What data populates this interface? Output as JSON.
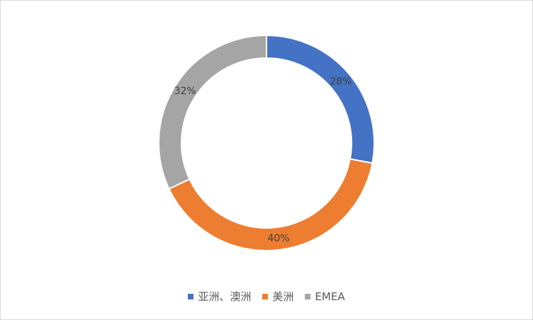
{
  "chart_data": {
    "type": "pie",
    "variant": "doughnut",
    "start_angle_deg": 0,
    "direction": "clockwise",
    "legend_position": "bottom",
    "categories": [
      "亚洲、澳洲",
      "美洲",
      "EMEA"
    ],
    "values": [
      28,
      40,
      32
    ],
    "data_labels": [
      "28%",
      "40%",
      "32%"
    ],
    "colors": [
      "#4472c4",
      "#ed7d31",
      "#a5a5a5"
    ]
  }
}
